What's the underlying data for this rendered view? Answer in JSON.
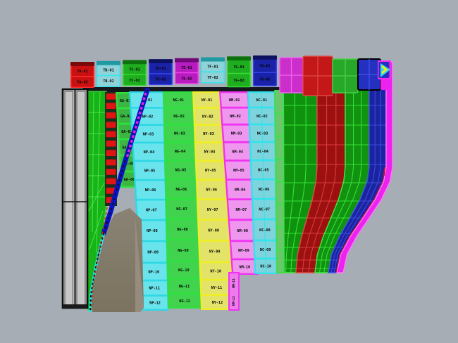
{
  "viewport": {
    "background": "#a6adb5",
    "description": "3D hull plating view"
  },
  "top_band": {
    "palette": {
      "red": {
        "border": "#ff2a2a",
        "face": "#c91111",
        "lid": "#7a0a0a"
      },
      "cyan": {
        "border": "#30e8f0",
        "face": "#8fd2d8",
        "lid": "#1f9aa2"
      },
      "green": {
        "border": "#33dd33",
        "face": "#1fae1f",
        "lid": "#0c720c"
      },
      "blue": {
        "border": "#3344ee",
        "face": "#1a22a8",
        "lid": "#0d1260"
      },
      "magenta": {
        "border": "#ee44ee",
        "face": "#b81cc0",
        "lid": "#700a78"
      }
    },
    "panels": [
      {
        "color_name": "red",
        "labels": [
          "TA-01",
          "TA-02"
        ]
      },
      {
        "color_name": "cyan",
        "labels": [
          "TB-01",
          "TB-02"
        ]
      },
      {
        "color_name": "green",
        "labels": [
          "TC-01",
          "TC-02"
        ]
      },
      {
        "color_name": "blue",
        "labels": [
          "TD-01",
          "TD-02"
        ]
      },
      {
        "color_name": "magenta",
        "labels": [
          "TE-01",
          "TE-02"
        ]
      },
      {
        "color_name": "cyan",
        "labels": [
          "TF-01",
          "TF-02"
        ]
      },
      {
        "color_name": "green",
        "labels": [
          "TG-01",
          "TG-02"
        ]
      },
      {
        "color_name": "blue",
        "labels": [
          "TH-01",
          "TH-02"
        ]
      }
    ],
    "wide_panels": [
      {
        "name": "magenta-top",
        "fill": "#cc2ecc",
        "grid": "#ee66ee"
      },
      {
        "name": "red-top",
        "fill": "#c41818",
        "grid": "#e04747"
      },
      {
        "name": "green-top",
        "fill": "#28a828",
        "grid": "#4ad04a"
      },
      {
        "name": "blue-top",
        "fill": "#2430c0",
        "grid": "#4253e8",
        "outline": "#000000"
      }
    ]
  },
  "columns": [
    {
      "id": "green-narrow",
      "border": "#2ee23a",
      "fill_top": "#2f8f35",
      "fill_bottom": "#3cb545",
      "labels": [
        "GA-01",
        "GA-02",
        "GA-03",
        "GA-04",
        "GA-05",
        "GA-06"
      ]
    },
    {
      "id": "teal",
      "border": "#2fd8e4",
      "fill_top": "#418a92",
      "fill_bottom": "#6ae4ec",
      "labels": [
        "NP-01",
        "NP-02",
        "NP-03",
        "NP-04",
        "NP-05",
        "NP-06",
        "NP-07",
        "NP-08",
        "NP-09",
        "NP-10",
        "NP-11",
        "NP-12"
      ]
    },
    {
      "id": "green",
      "border": "#2fe040",
      "fill_top": "#2e8434",
      "fill_bottom": "#41d34d",
      "labels": [
        "NG-01",
        "NG-02",
        "NG-03",
        "NG-04",
        "NG-05",
        "NG-06",
        "NG-07",
        "NG-08",
        "NG-09",
        "NG-10",
        "NG-11",
        "NG-12"
      ]
    },
    {
      "id": "yellow",
      "border": "#eeee26",
      "fill_top": "#90902c",
      "fill_bottom": "#e3e369",
      "labels": [
        "NY-01",
        "NY-02",
        "NY-03",
        "NY-04",
        "NY-05",
        "NY-06",
        "NY-07",
        "NY-08",
        "NY-09",
        "NY-10",
        "NY-11",
        "NY-12"
      ]
    },
    {
      "id": "magenta",
      "border": "#f033f0",
      "fill_top": "#a62cb0",
      "fill_bottom": "#ef97ef",
      "labels": [
        "NM-01",
        "NM-02",
        "NM-03",
        "NM-04",
        "NM-05",
        "NM-06",
        "NM-07",
        "NM-08",
        "NM-09",
        "NM-10"
      ]
    },
    {
      "id": "pale-cyan",
      "border": "#32e2ec",
      "fill_top": "#4f9aa6",
      "fill_bottom": "#7ed4dc",
      "labels": [
        "NC-01",
        "NC-02",
        "NC-03",
        "NC-04",
        "NC-05",
        "NC-06",
        "NC-07",
        "NC-08",
        "NC-09",
        "NC-10"
      ]
    },
    {
      "id": "pale-green",
      "border": "#46da52",
      "fill_top": "#55a855",
      "fill_bottom": "#6cc76c",
      "labels": []
    }
  ],
  "magenta_sliver": {
    "labels": [
      "NM-11",
      "NM-12"
    ],
    "fill": "#ee7aee",
    "border": "#f033f0"
  },
  "red_tabs": {
    "fill": "#e01414",
    "backing": "#1c2e1c",
    "count": 12
  },
  "green_frame": {
    "fill": "#16b416",
    "line": "#52e852"
  },
  "strakes": [
    {
      "id": "green-strake-1",
      "fill_top": "#0b6b0b",
      "fill_mid": "#2cc42c",
      "fill_bottom": "#0f930f",
      "line": "#3bee3b"
    },
    {
      "id": "red-strake",
      "fill_top": "#7c0909",
      "fill_mid": "#c41515",
      "fill_bottom": "#9c1010",
      "line": "#e54343"
    },
    {
      "id": "green-strake-2",
      "fill_top": "#0b720b",
      "fill_mid": "#27b827",
      "fill_bottom": "#119211",
      "line": "#3bee3b"
    },
    {
      "id": "blue-strake",
      "fill_top": "#0e1570",
      "fill_mid": "#2330c6",
      "fill_bottom": "#1a23a0",
      "line": "#4053e8"
    },
    {
      "id": "magenta-rim",
      "fill_top": "#ee22ee",
      "fill_mid": "#f23cf2",
      "fill_bottom": "#ee22ee",
      "line": "#ff7aff"
    }
  ],
  "curves": {
    "stem": "#0a12c8",
    "stem_dash": "#101010",
    "magenta_dash": "#e020e0",
    "cyan_dash": "#22e2ea",
    "red_dash": "#cc3300"
  },
  "slab": {
    "fill": "#c6c6c6",
    "inner_line": "#3a3a3a",
    "outline": "#101010"
  },
  "shadow_region": {
    "fill_left": "#8a8274",
    "fill_right": "#9a9183"
  },
  "marker": {
    "backing": "#2430c0",
    "border": "#f02cf0",
    "triangle": "#35d8ee",
    "arrow": "#ffee00"
  }
}
